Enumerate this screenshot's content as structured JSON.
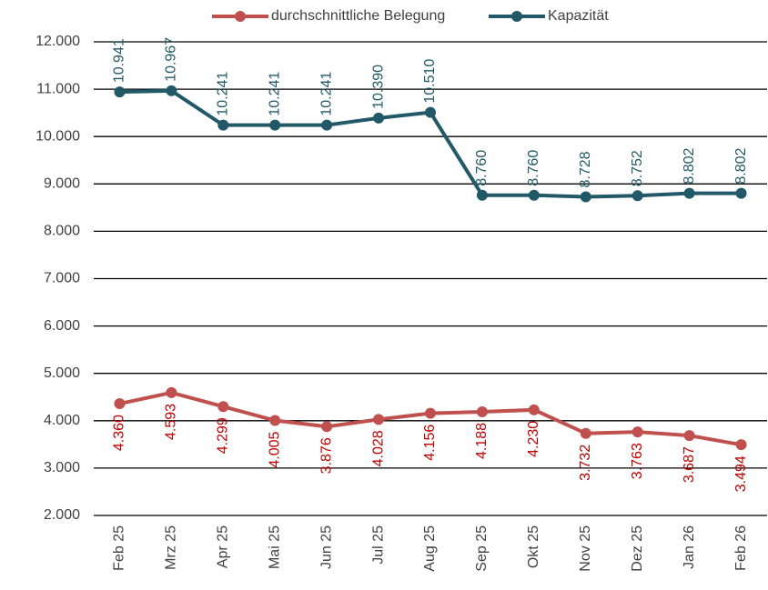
{
  "chart_data": {
    "type": "line",
    "categories": [
      "Feb 25",
      "Mrz 25",
      "Apr 25",
      "Mai 25",
      "Jun 25",
      "Jul 25",
      "Aug 25",
      "Sep 25",
      "Okt 25",
      "Nov 25",
      "Dez 25",
      "Jan 26",
      "Feb 26"
    ],
    "series": [
      {
        "name": "durchschnittliche Belegung",
        "color": "#c0504d",
        "label_color": "#c00000",
        "values": [
          4360,
          4593,
          4299,
          4005,
          3876,
          4028,
          4156,
          4188,
          4230,
          3732,
          3763,
          3687,
          3494
        ],
        "value_labels": [
          "4.360",
          "4.593",
          "4.299",
          "4.005",
          "3.876",
          "4.028",
          "4.156",
          "4.188",
          "4.230",
          "3.732",
          "3.763",
          "3.687",
          "3.494"
        ]
      },
      {
        "name": "Kapazität",
        "color": "#215968",
        "label_color": "#215968",
        "values": [
          10941,
          10967,
          10241,
          10241,
          10241,
          10390,
          10510,
          8760,
          8760,
          8728,
          8752,
          8802,
          8802
        ],
        "value_labels": [
          "10.941",
          "10.967",
          "10.241",
          "10.241",
          "10.241",
          "10.390",
          "10.510",
          "8.760",
          "8.760",
          "8.728",
          "8.752",
          "8.802",
          "8.802"
        ]
      }
    ],
    "ylim": [
      2000,
      12000
    ],
    "yticks": [
      {
        "value": 2000,
        "label": "2.000"
      },
      {
        "value": 3000,
        "label": "3.000"
      },
      {
        "value": 4000,
        "label": "4.000"
      },
      {
        "value": 5000,
        "label": "5.000"
      },
      {
        "value": 6000,
        "label": "6.000"
      },
      {
        "value": 7000,
        "label": "7.000"
      },
      {
        "value": 8000,
        "label": "8.000"
      },
      {
        "value": 9000,
        "label": "9.000"
      },
      {
        "value": 10000,
        "label": "10.000"
      },
      {
        "value": 11000,
        "label": "11.000"
      },
      {
        "value": 12000,
        "label": "12.000"
      }
    ],
    "grid": true,
    "legend": "top"
  }
}
